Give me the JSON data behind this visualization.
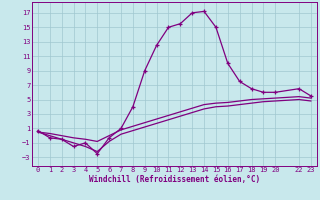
{
  "xlabel": "Windchill (Refroidissement éolien,°C)",
  "bg_color": "#c8e8ec",
  "grid_color": "#a0c8d0",
  "line_color": "#800080",
  "x_ticks": [
    0,
    1,
    2,
    3,
    4,
    5,
    6,
    7,
    8,
    9,
    10,
    11,
    12,
    13,
    14,
    15,
    16,
    17,
    18,
    19,
    20,
    22,
    23
  ],
  "y_ticks": [
    -3,
    -1,
    1,
    3,
    5,
    7,
    9,
    11,
    13,
    15,
    17
  ],
  "xlim": [
    -0.5,
    23.5
  ],
  "ylim": [
    -4.2,
    18.5
  ],
  "line1_x": [
    0,
    1,
    2,
    3,
    4,
    5,
    6,
    7,
    8,
    9,
    10,
    11,
    12,
    13,
    14,
    15,
    16,
    17,
    18,
    19,
    20,
    22,
    23
  ],
  "line1_y": [
    0.7,
    -0.3,
    -0.5,
    -1.5,
    -1.0,
    -2.5,
    -0.3,
    1.0,
    4.0,
    9.0,
    12.5,
    15.0,
    15.5,
    17.0,
    17.2,
    15.0,
    10.0,
    7.5,
    6.5,
    6.0,
    6.0,
    6.5,
    5.5
  ],
  "line2_x": [
    0,
    1,
    2,
    3,
    4,
    5,
    6,
    7,
    8,
    9,
    10,
    11,
    12,
    13,
    14,
    15,
    16,
    17,
    18,
    19,
    20,
    22,
    23
  ],
  "line2_y": [
    0.5,
    0.3,
    0.0,
    -0.3,
    -0.5,
    -0.8,
    0.0,
    0.8,
    1.3,
    1.8,
    2.3,
    2.8,
    3.3,
    3.8,
    4.3,
    4.5,
    4.6,
    4.8,
    5.0,
    5.1,
    5.2,
    5.4,
    5.2
  ],
  "line3_x": [
    0,
    1,
    2,
    3,
    4,
    5,
    6,
    7,
    8,
    9,
    10,
    11,
    12,
    13,
    14,
    15,
    16,
    17,
    18,
    19,
    20,
    22,
    23
  ],
  "line3_y": [
    0.5,
    0.0,
    -0.5,
    -1.0,
    -1.5,
    -2.2,
    -0.8,
    0.2,
    0.7,
    1.2,
    1.7,
    2.2,
    2.7,
    3.2,
    3.7,
    4.0,
    4.1,
    4.3,
    4.5,
    4.7,
    4.8,
    5.0,
    4.8
  ],
  "font_family": "monospace",
  "tick_fontsize": 5.0,
  "xlabel_fontsize": 5.5,
  "marker_size": 3.5,
  "linewidth": 0.9
}
